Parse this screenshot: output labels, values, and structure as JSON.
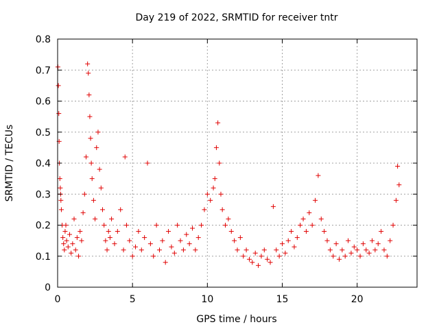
{
  "chart_data": {
    "type": "scatter",
    "title": "Day 219 of 2022, SRMTID for receiver tntr",
    "xlabel": "GPS time / hours",
    "ylabel": "SRMTID / TECUs",
    "xlim": [
      0,
      24
    ],
    "ylim": [
      0,
      0.8
    ],
    "xticks": [
      0,
      5,
      10,
      15,
      20
    ],
    "xtick_labels": [
      "0",
      "5",
      "10",
      "15",
      "20"
    ],
    "yticks": [
      0,
      0.1,
      0.2,
      0.3,
      0.4,
      0.5,
      0.6,
      0.7,
      0.8
    ],
    "ytick_labels": [
      "0",
      "0.1",
      "0.2",
      "0.3",
      "0.4",
      "0.5",
      "0.6",
      "0.7",
      "0.8"
    ],
    "grid": true,
    "marker": "+",
    "color": "#e00000",
    "series": [
      {
        "name": "SRMTID",
        "x": [
          0.02,
          0.05,
          0.08,
          0.1,
          0.12,
          0.15,
          0.18,
          0.2,
          0.22,
          0.25,
          0.3,
          0.35,
          0.4,
          0.45,
          0.5,
          0.55,
          0.6,
          0.7,
          0.8,
          0.9,
          1.0,
          1.1,
          1.2,
          1.3,
          1.4,
          1.5,
          1.6,
          1.7,
          1.8,
          1.9,
          2.0,
          2.05,
          2.1,
          2.15,
          2.2,
          2.25,
          2.3,
          2.4,
          2.5,
          2.6,
          2.7,
          2.8,
          2.9,
          3.0,
          3.1,
          3.2,
          3.3,
          3.4,
          3.5,
          3.6,
          3.8,
          4.0,
          4.2,
          4.4,
          4.5,
          4.6,
          4.8,
          5.0,
          5.2,
          5.4,
          5.6,
          5.8,
          6.0,
          6.2,
          6.4,
          6.6,
          6.8,
          7.0,
          7.2,
          7.4,
          7.6,
          7.8,
          8.0,
          8.2,
          8.4,
          8.6,
          8.8,
          9.0,
          9.2,
          9.4,
          9.6,
          9.8,
          10.0,
          10.2,
          10.4,
          10.5,
          10.6,
          10.7,
          10.8,
          10.9,
          11.0,
          11.2,
          11.4,
          11.6,
          11.8,
          12.0,
          12.2,
          12.4,
          12.6,
          12.8,
          13.0,
          13.2,
          13.4,
          13.6,
          13.8,
          14.0,
          14.2,
          14.4,
          14.6,
          14.8,
          15.0,
          15.2,
          15.4,
          15.6,
          15.8,
          16.0,
          16.2,
          16.4,
          16.6,
          16.8,
          17.0,
          17.2,
          17.4,
          17.6,
          17.8,
          18.0,
          18.2,
          18.4,
          18.6,
          18.8,
          19.0,
          19.2,
          19.4,
          19.6,
          19.8,
          20.0,
          20.2,
          20.4,
          20.6,
          20.8,
          21.0,
          21.2,
          21.4,
          21.6,
          21.8,
          22.0,
          22.2,
          22.4,
          22.6,
          22.7,
          22.8
        ],
        "y": [
          0.71,
          0.65,
          0.56,
          0.47,
          0.4,
          0.35,
          0.32,
          0.3,
          0.28,
          0.25,
          0.2,
          0.16,
          0.14,
          0.12,
          0.18,
          0.2,
          0.15,
          0.13,
          0.17,
          0.11,
          0.14,
          0.22,
          0.12,
          0.16,
          0.1,
          0.18,
          0.15,
          0.24,
          0.3,
          0.42,
          0.72,
          0.69,
          0.62,
          0.55,
          0.48,
          0.4,
          0.35,
          0.28,
          0.22,
          0.45,
          0.5,
          0.38,
          0.32,
          0.25,
          0.2,
          0.15,
          0.12,
          0.18,
          0.16,
          0.22,
          0.14,
          0.18,
          0.25,
          0.12,
          0.42,
          0.2,
          0.15,
          0.1,
          0.13,
          0.18,
          0.12,
          0.16,
          0.4,
          0.14,
          0.1,
          0.2,
          0.12,
          0.15,
          0.08,
          0.18,
          0.13,
          0.11,
          0.2,
          0.15,
          0.12,
          0.17,
          0.14,
          0.19,
          0.12,
          0.16,
          0.2,
          0.25,
          0.3,
          0.28,
          0.32,
          0.35,
          0.45,
          0.53,
          0.4,
          0.3,
          0.25,
          0.2,
          0.22,
          0.18,
          0.15,
          0.12,
          0.16,
          0.1,
          0.12,
          0.09,
          0.08,
          0.11,
          0.07,
          0.1,
          0.12,
          0.09,
          0.08,
          0.26,
          0.12,
          0.1,
          0.14,
          0.11,
          0.15,
          0.18,
          0.13,
          0.16,
          0.2,
          0.22,
          0.18,
          0.24,
          0.2,
          0.28,
          0.36,
          0.22,
          0.18,
          0.15,
          0.12,
          0.1,
          0.14,
          0.09,
          0.12,
          0.1,
          0.15,
          0.11,
          0.13,
          0.12,
          0.1,
          0.14,
          0.12,
          0.11,
          0.15,
          0.12,
          0.14,
          0.18,
          0.12,
          0.1,
          0.15,
          0.2,
          0.28,
          0.39,
          0.33
        ]
      }
    ]
  }
}
